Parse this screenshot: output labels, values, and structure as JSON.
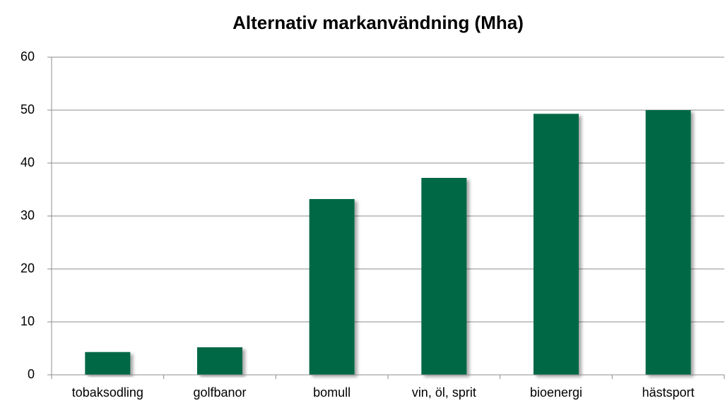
{
  "chart_data": {
    "type": "bar",
    "title": "Alternativ markanvändning (Mha)",
    "categories": [
      "tobaksodling",
      "golfbanor",
      "bomull",
      "vin, öl, sprit",
      "bioenergi",
      "hästsport"
    ],
    "values": [
      4.3,
      5.2,
      33.2,
      37.2,
      49.3,
      50
    ],
    "color": "#006845",
    "ylim": [
      0,
      60
    ],
    "yticks": [
      0,
      10,
      20,
      30,
      40,
      50,
      60
    ],
    "grid": true
  }
}
